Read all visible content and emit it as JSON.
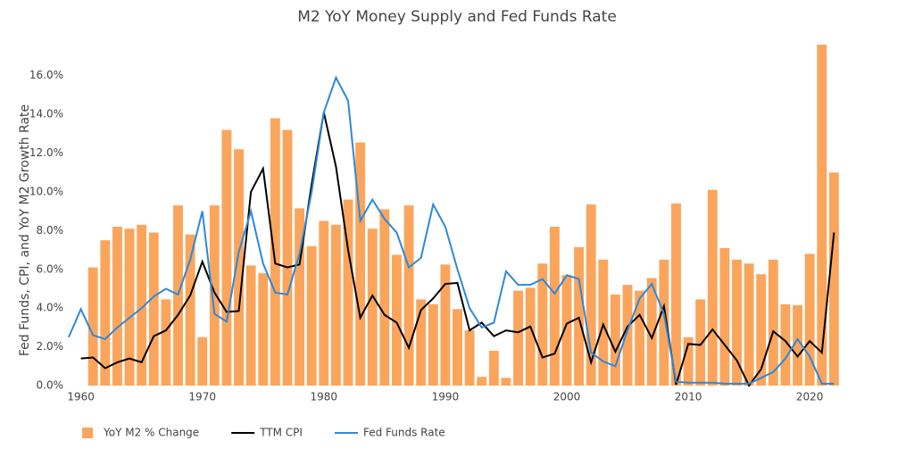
{
  "chart_data": {
    "type": "combo",
    "title": "M2 YoY Money Supply and Fed Funds Rate",
    "y_label": "Fed Funds, CPI, and YoY M2 Growth Rate",
    "x": [
      1959,
      1960,
      1961,
      1962,
      1963,
      1964,
      1965,
      1966,
      1967,
      1968,
      1969,
      1970,
      1971,
      1972,
      1973,
      1974,
      1975,
      1976,
      1977,
      1978,
      1979,
      1980,
      1981,
      1982,
      1983,
      1984,
      1985,
      1986,
      1987,
      1988,
      1989,
      1990,
      1991,
      1992,
      1993,
      1994,
      1995,
      1996,
      1997,
      1998,
      1999,
      2000,
      2001,
      2002,
      2003,
      2004,
      2005,
      2006,
      2007,
      2008,
      2009,
      2010,
      2011,
      2012,
      2013,
      2014,
      2015,
      2016,
      2017,
      2018,
      2019,
      2020,
      2021,
      2022
    ],
    "xlim": [
      1959,
      2023
    ],
    "xticks": [
      1960,
      1970,
      1980,
      1990,
      2000,
      2010,
      2020
    ],
    "ylim": [
      0,
      17.6
    ],
    "yticks": [
      {
        "value": 0,
        "label": "0.0%"
      },
      {
        "value": 2,
        "label": "2.0%"
      },
      {
        "value": 4,
        "label": "4.0%"
      },
      {
        "value": 6,
        "label": "6.0%"
      },
      {
        "value": 8,
        "label": "8.0%"
      },
      {
        "value": 10,
        "label": "10.0%"
      },
      {
        "value": 12,
        "label": "12.0%"
      },
      {
        "value": 14,
        "label": "14.0%"
      },
      {
        "value": 16,
        "label": "16.0%"
      }
    ],
    "grid": false,
    "legend": "bottom",
    "series": [
      {
        "name": "YoY M2 % Change",
        "type": "bar",
        "color": "#fba55c",
        "values": [
          null,
          null,
          6.1,
          7.5,
          8.2,
          8.1,
          8.3,
          7.9,
          4.45,
          9.3,
          7.8,
          2.5,
          9.3,
          13.2,
          12.2,
          6.2,
          5.8,
          13.8,
          13.2,
          9.15,
          7.2,
          8.5,
          8.3,
          9.6,
          12.55,
          8.1,
          9.1,
          6.75,
          9.3,
          4.45,
          4.2,
          6.25,
          3.95,
          2.85,
          0.45,
          1.8,
          0.4,
          4.9,
          5.05,
          6.3,
          8.2,
          5.7,
          7.15,
          9.35,
          6.5,
          4.7,
          5.2,
          4.9,
          5.55,
          6.5,
          9.4,
          2.5,
          4.45,
          10.1,
          7.1,
          6.5,
          6.3,
          5.75,
          6.5,
          4.2,
          4.15,
          6.8,
          17.6,
          11.0
        ]
      },
      {
        "name": "TTM CPI",
        "type": "line",
        "color": "#000000",
        "values": [
          null,
          1.4,
          1.45,
          0.9,
          1.2,
          1.4,
          1.2,
          2.55,
          2.85,
          3.65,
          4.65,
          6.4,
          4.8,
          3.8,
          3.85,
          10.0,
          11.2,
          6.3,
          6.1,
          6.25,
          10.4,
          14.1,
          11.3,
          7.0,
          3.5,
          4.65,
          3.65,
          3.25,
          1.95,
          3.9,
          4.5,
          5.25,
          5.3,
          2.85,
          3.25,
          2.55,
          2.85,
          2.75,
          3.05,
          1.45,
          1.65,
          3.2,
          3.5,
          1.2,
          3.15,
          1.75,
          3.05,
          3.65,
          2.45,
          4.1,
          0.05,
          2.15,
          2.1,
          2.9,
          2.1,
          1.3,
          0.0,
          0.85,
          2.8,
          2.3,
          1.5,
          2.3,
          1.7,
          7.9
        ]
      },
      {
        "name": "Fed Funds Rate",
        "type": "line",
        "color": "#2f88d8",
        "values": [
          2.5,
          3.95,
          2.6,
          2.4,
          3.0,
          3.5,
          4.0,
          4.6,
          5.0,
          4.7,
          6.5,
          9.0,
          3.7,
          3.3,
          6.9,
          9.0,
          6.3,
          4.8,
          4.7,
          6.8,
          10.0,
          14.1,
          15.9,
          14.7,
          8.5,
          9.6,
          8.6,
          7.9,
          6.1,
          6.6,
          9.35,
          8.2,
          6.0,
          4.0,
          3.0,
          3.25,
          5.9,
          5.2,
          5.2,
          5.5,
          4.75,
          5.7,
          5.5,
          1.7,
          1.25,
          1.0,
          2.85,
          4.5,
          5.25,
          3.7,
          0.2,
          0.15,
          0.15,
          0.15,
          0.1,
          0.1,
          0.1,
          0.4,
          0.7,
          1.4,
          2.4,
          1.5,
          0.1,
          0.1
        ]
      }
    ]
  }
}
